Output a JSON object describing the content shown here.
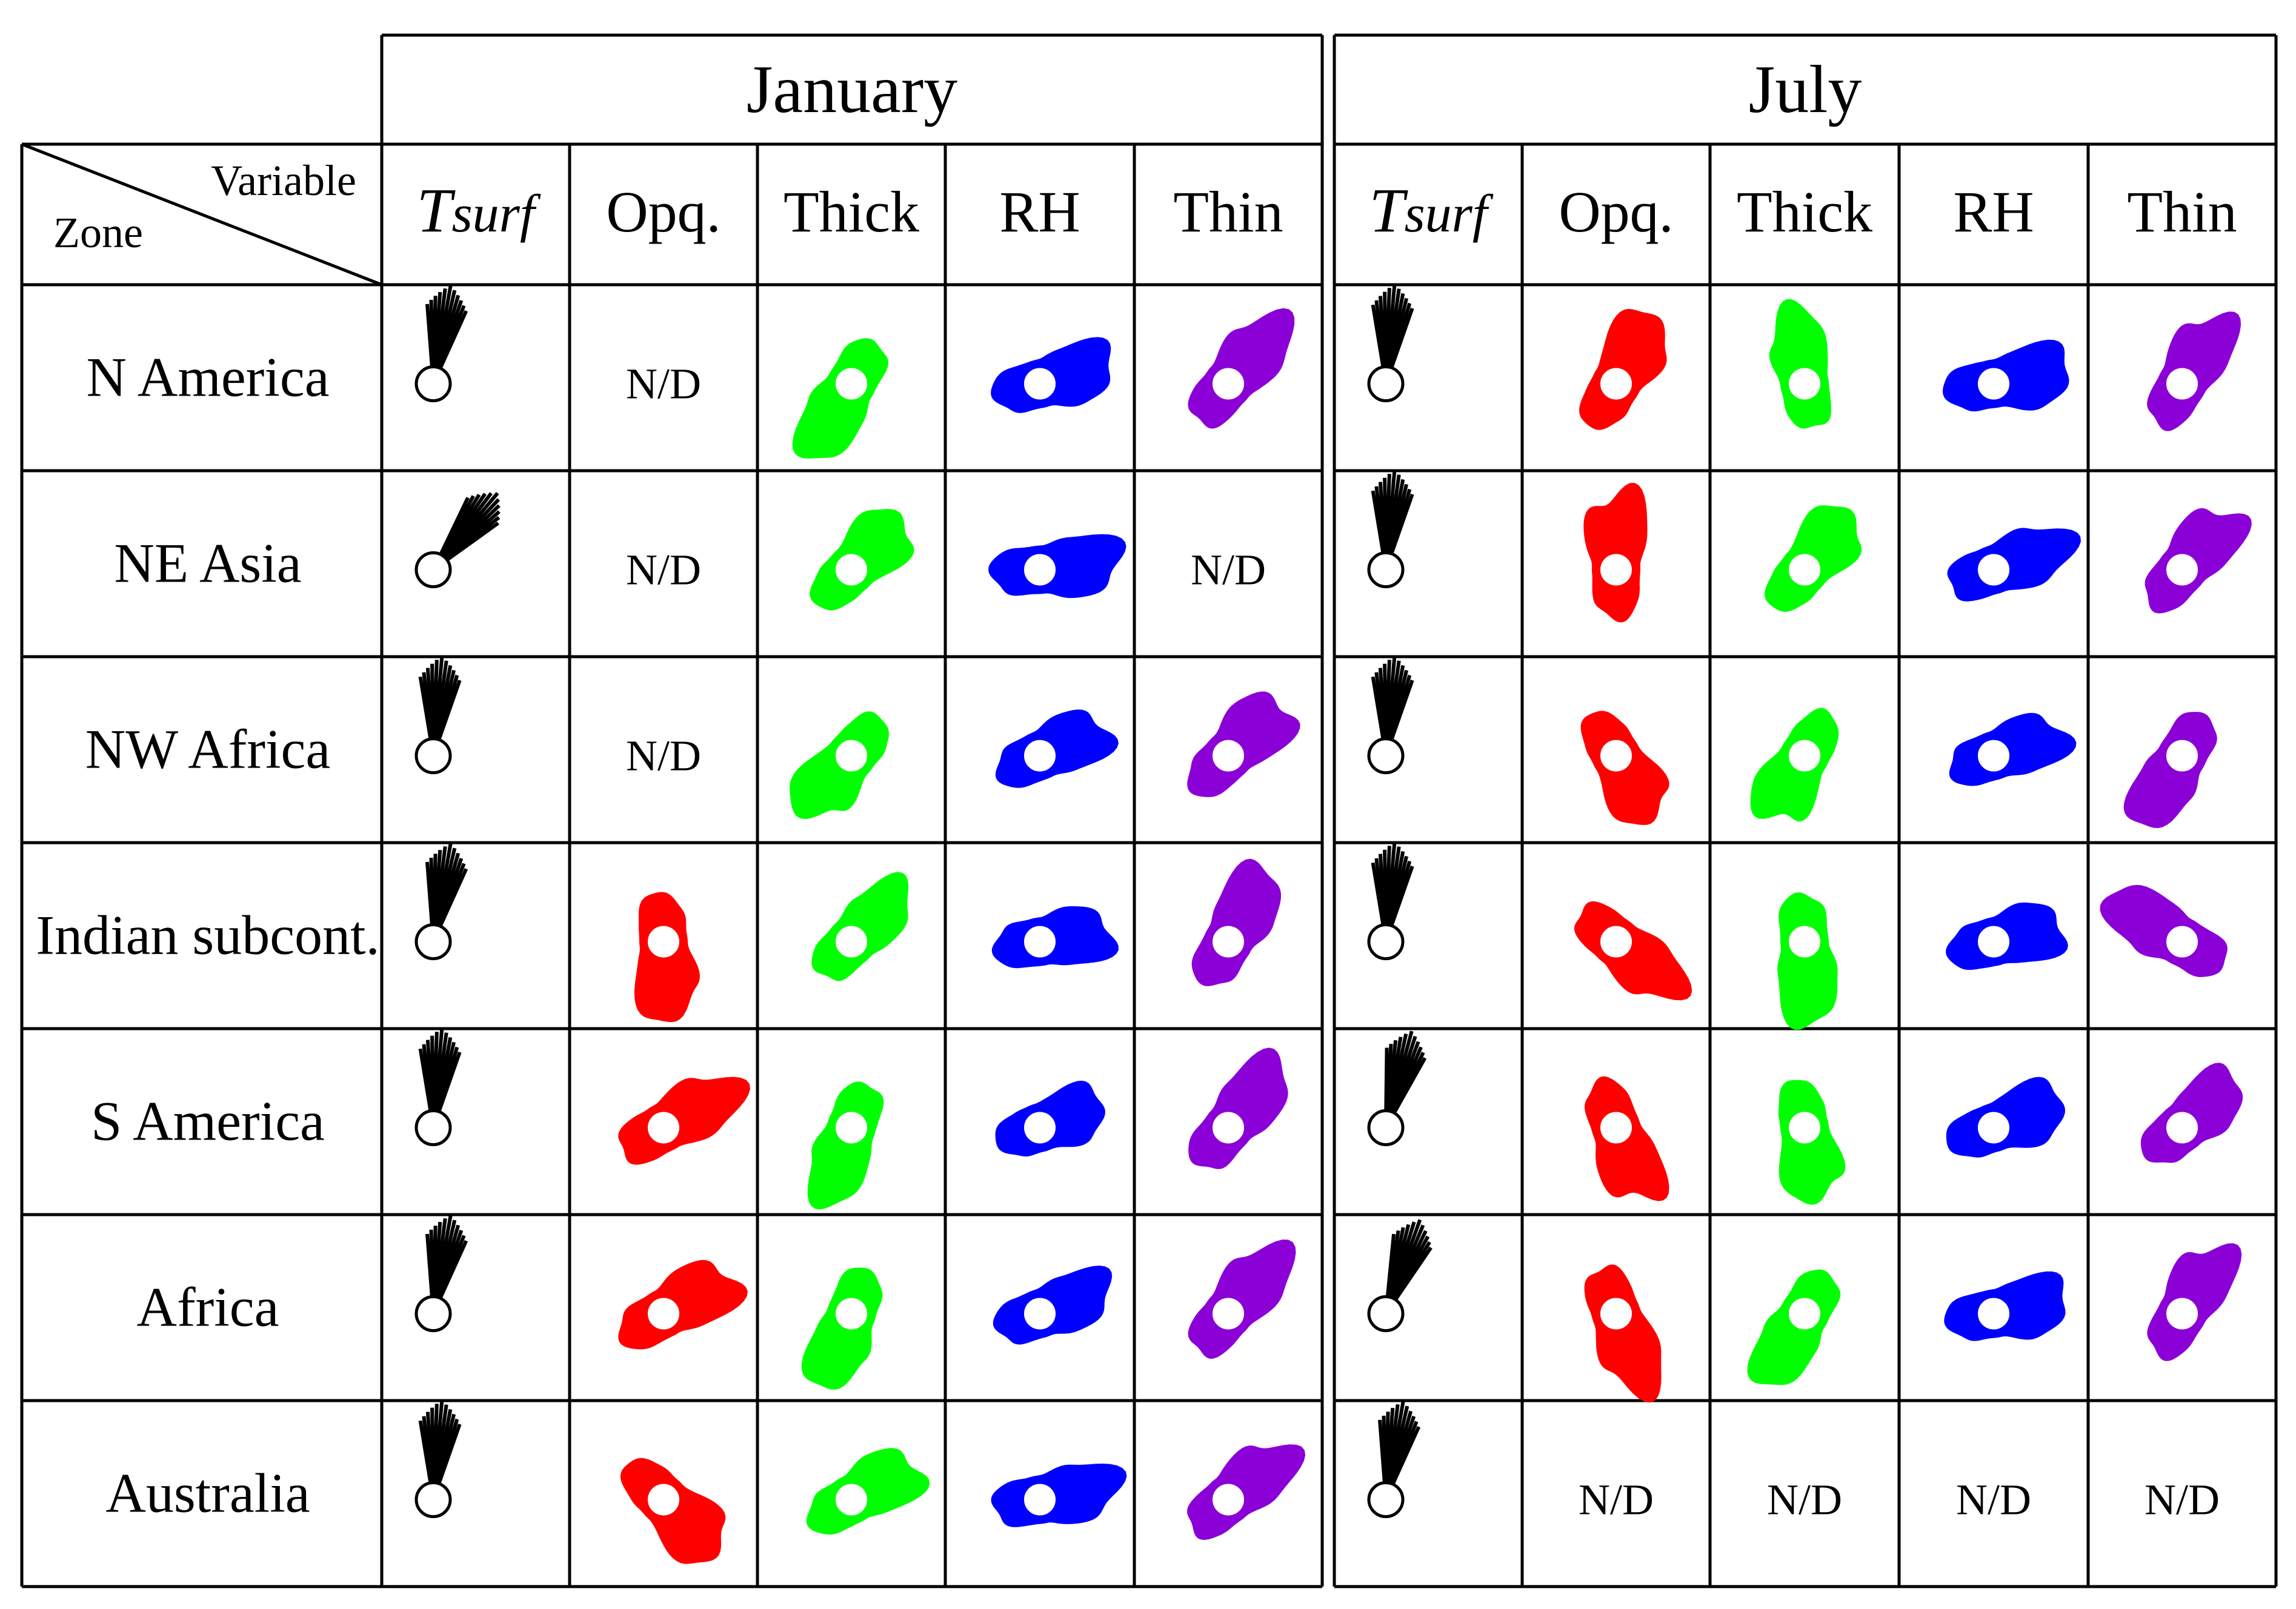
{
  "header": {
    "zone_label": "Zone",
    "variable_label": "Variable",
    "months": [
      {
        "label": "January",
        "vars": [
          "T_surf",
          "Opq.",
          "Thick",
          "RH",
          "Thin"
        ]
      },
      {
        "label": "July",
        "vars": [
          "T_surf",
          "Opq.",
          "Thick",
          "RH",
          "Thin"
        ]
      }
    ],
    "tsurf": {
      "main": "T",
      "sub": "surf"
    }
  },
  "nd_label": "N/D",
  "colors": {
    "Tsurf": "#000000",
    "Opq.": "#ff0000",
    "Thick": "#00ff00",
    "RH": "#0000ff",
    "Thin": "#8b00d6"
  },
  "zones": [
    {
      "name": "N America",
      "jan": [
        {
          "a": 10,
          "r": 0.9
        },
        null,
        {
          "a": -150,
          "r": 0.85
        },
        {
          "a": 75,
          "r": 0.8
        },
        {
          "a": 40,
          "r": 0.85
        }
      ],
      "jul": [
        {
          "a": 5,
          "r": 0.9
        },
        {
          "a": 30,
          "r": 0.85
        },
        {
          "a": -10,
          "r": 0.75
        },
        {
          "a": 80,
          "r": 0.85
        },
        {
          "a": 30,
          "r": 0.8
        }
      ]
    },
    {
      "name": "NE Asia",
      "jan": [
        {
          "a": 40,
          "r": 0.9
        },
        null,
        {
          "a": 45,
          "r": 0.8
        },
        {
          "a": 85,
          "r": 0.85
        },
        null
      ],
      "jul": [
        {
          "a": 5,
          "r": 0.9
        },
        {
          "a": 0,
          "r": 0.85
        },
        {
          "a": 40,
          "r": 0.8
        },
        {
          "a": 70,
          "r": 0.8
        },
        {
          "a": 40,
          "r": 0.8
        }
      ]
    },
    {
      "name": "NW Africa",
      "jan": [
        {
          "a": 5,
          "r": 0.9
        },
        null,
        {
          "a": -140,
          "r": 0.8
        },
        {
          "a": 65,
          "r": 0.75
        },
        {
          "a": 45,
          "r": 0.85
        }
      ],
      "jul": [
        {
          "a": 5,
          "r": 0.9
        },
        {
          "a": 150,
          "r": 0.8
        },
        {
          "a": -150,
          "r": 0.8
        },
        {
          "a": 70,
          "r": 0.75
        },
        {
          "a": -150,
          "r": 0.8
        }
      ]
    },
    {
      "name": "Indian subcont.",
      "jan": [
        {
          "a": 10,
          "r": 0.9
        },
        {
          "a": 175,
          "r": 0.85
        },
        {
          "a": 45,
          "r": 0.75
        },
        {
          "a": 80,
          "r": 0.75
        },
        {
          "a": 30,
          "r": 0.85
        }
      ],
      "jul": [
        {
          "a": 5,
          "r": 0.9
        },
        {
          "a": 130,
          "r": 0.8
        },
        {
          "a": 175,
          "r": 0.85
        },
        {
          "a": 75,
          "r": 0.75
        },
        {
          "a": -60,
          "r": 0.85
        }
      ]
    },
    {
      "name": "S America",
      "jan": [
        {
          "a": 5,
          "r": 0.9
        },
        {
          "a": 60,
          "r": 0.85
        },
        {
          "a": -160,
          "r": 0.8
        },
        {
          "a": 70,
          "r": 0.7
        },
        {
          "a": 40,
          "r": 0.85
        }
      ],
      "jul": [
        {
          "a": 15,
          "r": 0.9
        },
        {
          "a": 160,
          "r": 0.85
        },
        {
          "a": 170,
          "r": 0.8
        },
        {
          "a": 70,
          "r": 0.8
        },
        {
          "a": 50,
          "r": 0.75
        }
      ]
    },
    {
      "name": "Africa",
      "jan": [
        {
          "a": 10,
          "r": 0.9
        },
        {
          "a": 60,
          "r": 0.85
        },
        {
          "a": -160,
          "r": 0.8
        },
        {
          "a": 70,
          "r": 0.75
        },
        {
          "a": 40,
          "r": 0.85
        }
      ],
      "jul": [
        {
          "a": 20,
          "r": 0.9
        },
        {
          "a": 160,
          "r": 0.85
        },
        {
          "a": -150,
          "r": 0.8
        },
        {
          "a": 80,
          "r": 0.8
        },
        {
          "a": 30,
          "r": 0.8
        }
      ]
    },
    {
      "name": "Australia",
      "jan": [
        {
          "a": 5,
          "r": 0.9
        },
        {
          "a": 135,
          "r": 0.85
        },
        {
          "a": 60,
          "r": 0.8
        },
        {
          "a": 80,
          "r": 0.8
        },
        {
          "a": 50,
          "r": 0.8
        }
      ],
      "jul": [
        {
          "a": 10,
          "r": 0.9
        },
        null,
        null,
        null,
        null
      ]
    }
  ]
}
